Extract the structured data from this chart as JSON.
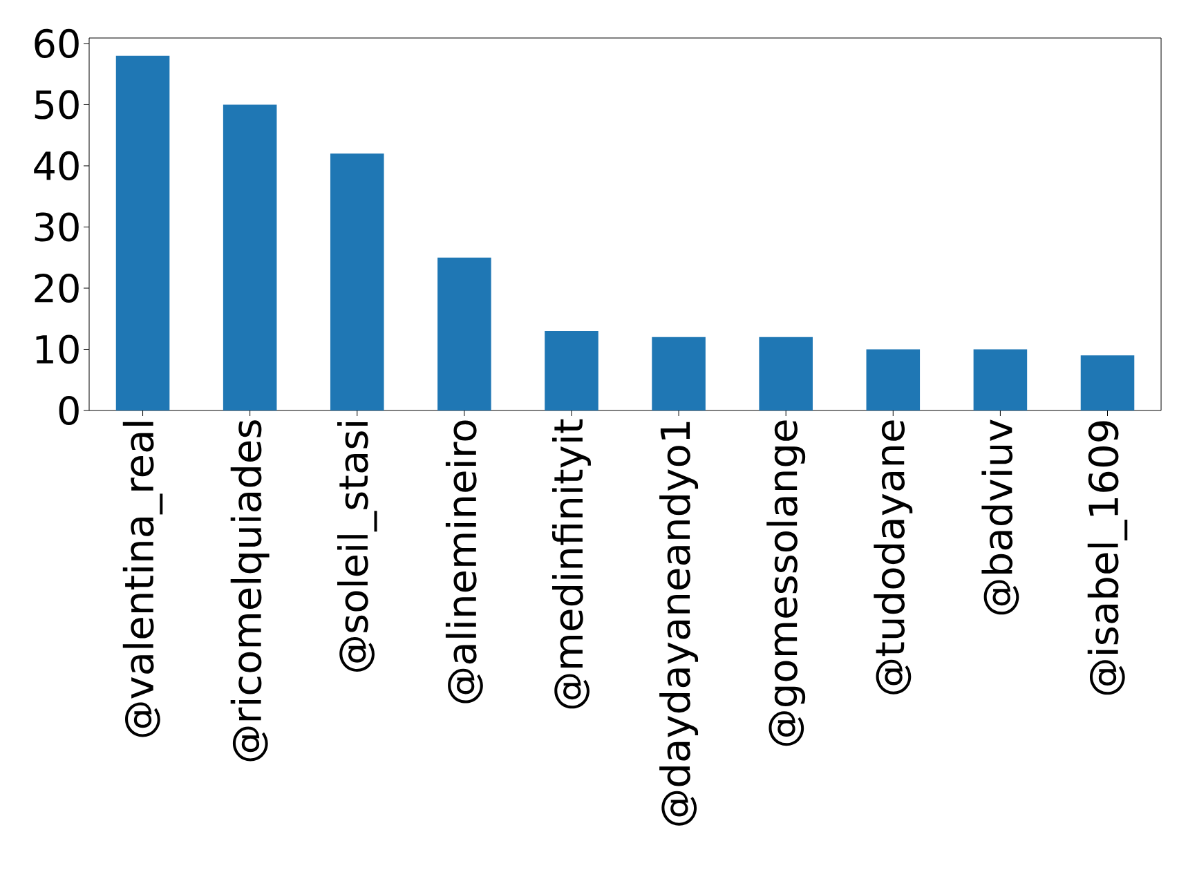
{
  "chart_data": {
    "type": "bar",
    "categories": [
      "@valentina_real",
      "@ricomelquiades",
      "@soleil_stasi",
      "@alinemineiro",
      "@medinfinityit",
      "@daydayaneandyo1",
      "@gomessolange",
      "@tudodayane",
      "@badviuv",
      "@isabel_1609"
    ],
    "values": [
      58,
      50,
      42,
      25,
      13,
      12,
      12,
      10,
      10,
      9
    ],
    "color": "#1f77b4",
    "ylim": [
      0,
      60.9
    ],
    "yticks": [
      0,
      10,
      20,
      30,
      40,
      50,
      60
    ],
    "grid": false
  }
}
